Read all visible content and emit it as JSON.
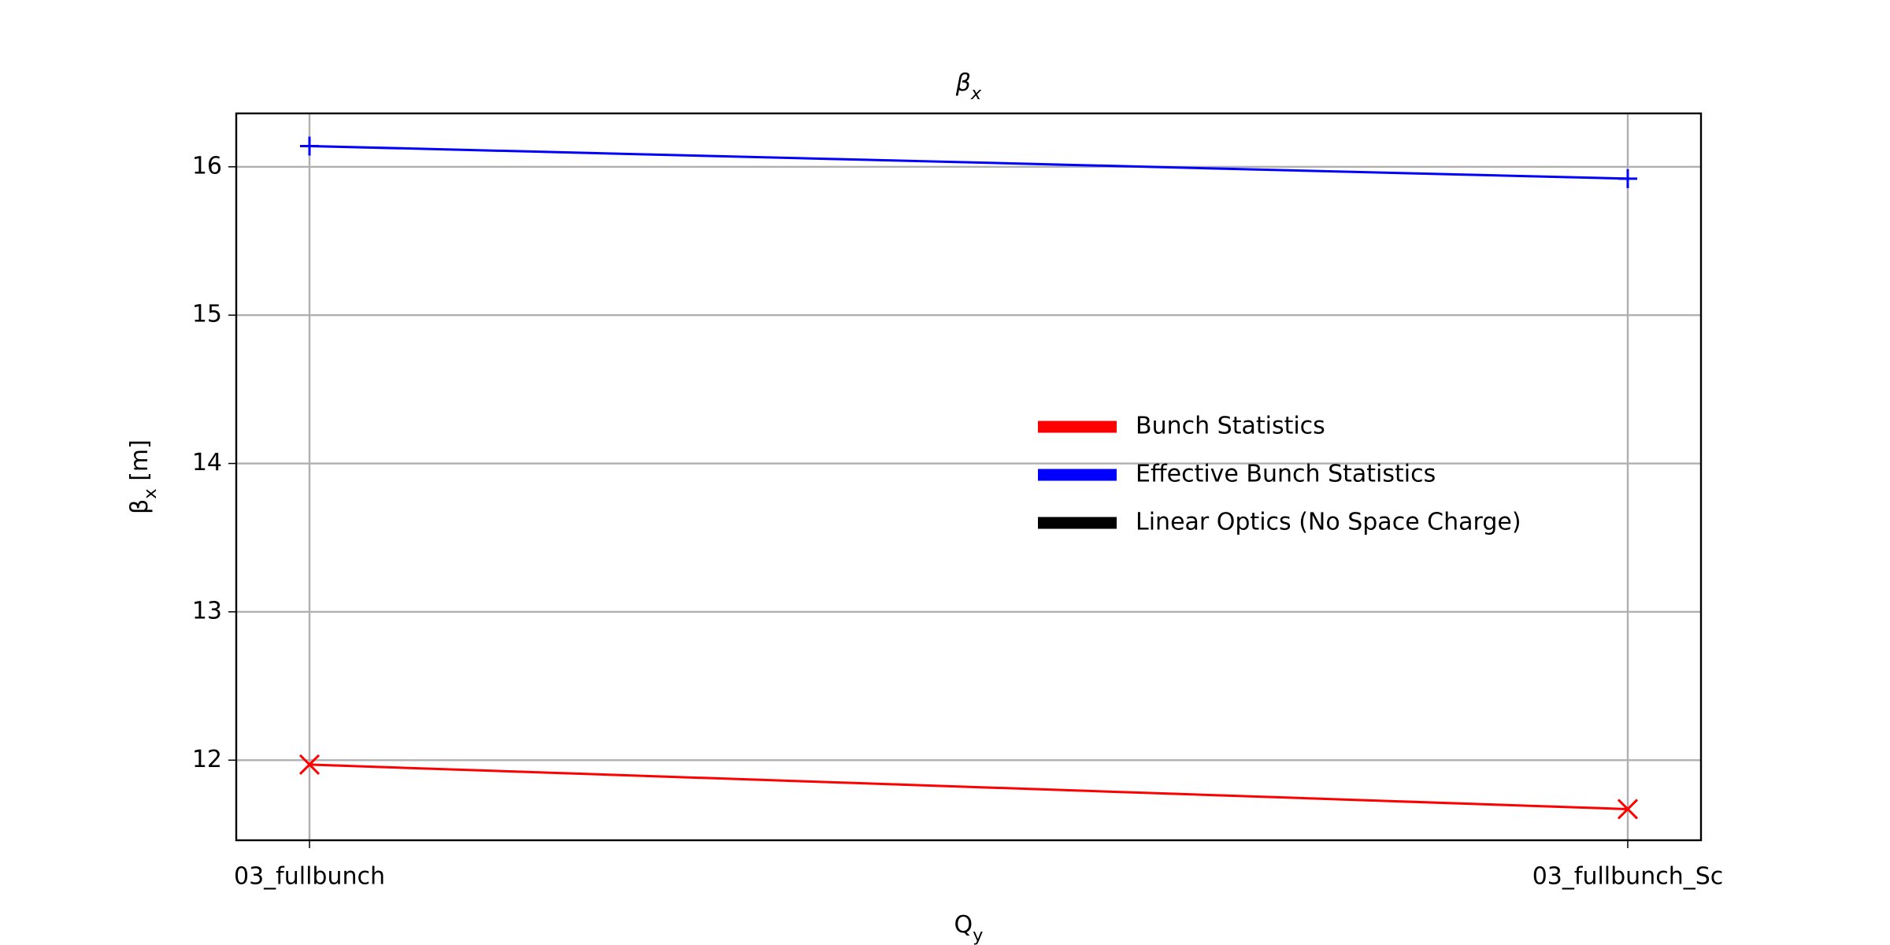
{
  "chart_data": {
    "type": "line",
    "title": [
      "β",
      "x"
    ],
    "xlabel": [
      "Q",
      "y"
    ],
    "ylabel": [
      "β",
      "x",
      " [m]"
    ],
    "categories": [
      "03_fullbunch",
      "03_fullbunch_Sc"
    ],
    "series": [
      {
        "name": "Bunch Statistics",
        "color": "#ff0000",
        "marker": "x",
        "values": [
          11.97,
          11.67
        ]
      },
      {
        "name": "Effective Bunch Statistics",
        "color": "#0000ff",
        "marker": "+",
        "values": [
          16.14,
          15.92
        ]
      },
      {
        "name": "Linear Optics (No Space Charge)",
        "color": "#000000",
        "marker": "none",
        "values": [
          null,
          null
        ]
      }
    ],
    "ylim": [
      11.46,
      16.36
    ],
    "yticks": [
      12,
      13,
      14,
      15,
      16
    ],
    "grid": true,
    "legend": "center right"
  }
}
